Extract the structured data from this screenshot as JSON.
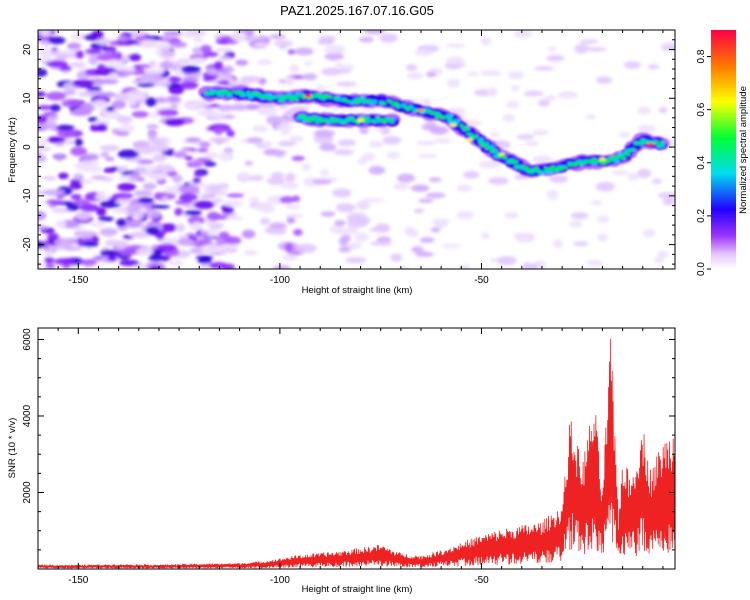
{
  "title": "PAZ1.2025.167.07.16.G05",
  "chart_data": [
    {
      "type": "heatmap",
      "xlabel": "Height of straight line (km)",
      "ylabel": "Frequency (Hz)",
      "xlim": [
        -160,
        -2
      ],
      "ylim": [
        -25,
        24
      ],
      "xticks": [
        "-150",
        "-100",
        "-50"
      ],
      "yticks": [
        "-20",
        "-10",
        "0",
        "10",
        "20"
      ],
      "colorbar": {
        "label": "Normalized spectral amplitude",
        "range": [
          0,
          0.9
        ],
        "ticks": [
          "0.0",
          "0.2",
          "0.4",
          "0.6",
          "0.8"
        ]
      },
      "ridge": {
        "x": [
          -118,
          -110,
          -100,
          -92,
          -85,
          -75,
          -65,
          -58,
          -50,
          -45,
          -38,
          -32,
          -25,
          -20,
          -15,
          -10,
          -5
        ],
        "y": [
          11,
          11,
          10,
          10.5,
          9.5,
          9.5,
          7.5,
          6,
          1,
          -2,
          -5,
          -4.5,
          -3,
          -3,
          -2,
          1.5,
          0.5
        ]
      },
      "ridge_lower": {
        "x": [
          -95,
          -90,
          -80,
          -72
        ],
        "y": [
          6,
          5.5,
          5.5,
          5.5
        ]
      }
    },
    {
      "type": "line",
      "xlabel": "Height of straight line (km)",
      "ylabel": "SNR (10 * v/v)",
      "xlim": [
        -160,
        -2
      ],
      "ylim": [
        0,
        6300
      ],
      "xticks": [
        "-150",
        "-100",
        "-50"
      ],
      "yticks": [
        "2000",
        "4000",
        "6000"
      ],
      "color": "#ee2222",
      "series": [
        {
          "x": [
            -160,
            -150,
            -140,
            -130,
            -120,
            -110,
            -105,
            -100,
            -95,
            -90,
            -85,
            -80,
            -75,
            -70,
            -65,
            -60,
            -55,
            -50,
            -45,
            -40,
            -35,
            -30,
            -28,
            -25,
            -22,
            -20,
            -18,
            -16,
            -15,
            -13,
            -10,
            -8,
            -5,
            -2
          ],
          "y": [
            120,
            110,
            130,
            120,
            140,
            160,
            200,
            280,
            380,
            420,
            480,
            560,
            650,
            420,
            350,
            500,
            700,
            900,
            1050,
            1150,
            1250,
            1700,
            4000,
            2800,
            4500,
            2000,
            6200,
            1400,
            3000,
            2400,
            3800,
            2600,
            3400,
            3700
          ]
        }
      ]
    }
  ]
}
